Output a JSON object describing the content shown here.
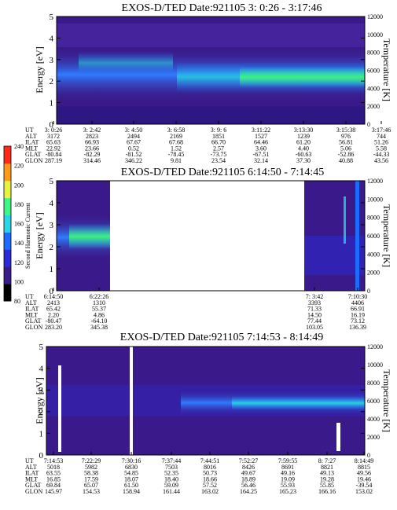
{
  "chart_data": [
    {
      "type": "heatmap",
      "title": "EXOS-D/TED    Date:921105   3: 0:26 - 3:17:46",
      "ylabel": "Energy [eV]",
      "y2label": "Temperature [K]",
      "ylim": [
        0,
        5
      ],
      "y_ticks": [
        "0",
        "1",
        "2",
        "3",
        "4",
        "5"
      ],
      "y2lim": [
        0,
        12000
      ],
      "y2_ticks": [
        "0",
        "2000",
        "4000",
        "6000",
        "8000",
        "10000",
        "12000"
      ],
      "ephemeris": {
        "row_labels": [
          "UT",
          "ALT",
          "ILAT",
          "MLT",
          "GLAT",
          "GLON"
        ],
        "columns": [
          [
            "3: 0:26",
            "3172",
            "65.63",
            "22.92",
            "-80.84",
            "287.19"
          ],
          [
            "3: 2:42",
            "2823",
            "66.93",
            "23.66",
            "-82.29",
            "314.46"
          ],
          [
            "3: 4:50",
            "2494",
            "67.67",
            "0.52",
            "-81.52",
            "346.22"
          ],
          [
            "3: 6:58",
            "2169",
            "67.68",
            "1.52",
            "-78.45",
            "9.81"
          ],
          [
            "3: 9: 6",
            "1851",
            "66.70",
            "2.57",
            "-73.75",
            "23.54"
          ],
          [
            "3:11:22",
            "1527",
            "64.46",
            "3.60",
            "-67.51",
            "32.14"
          ],
          [
            "3:13:30",
            "1239",
            "61.20",
            "4.40",
            "-60.63",
            "37.30"
          ],
          [
            "3:15:38",
            "976",
            "56.81",
            "5.06",
            "-52.86",
            "40.88"
          ],
          [
            "3:17:46",
            "744",
            "51.26",
            "5.58",
            "-44.33",
            "43.56"
          ]
        ]
      }
    },
    {
      "type": "heatmap",
      "title": "EXOS-D/TED    Date:921105   6:14:50 - 7:14:45",
      "ylabel": "Energy [eV]",
      "y2label": "Temperature [K]",
      "ylim": [
        0,
        5
      ],
      "y_ticks": [
        "0",
        "1",
        "2",
        "3",
        "4",
        "5"
      ],
      "y2lim": [
        0,
        12000
      ],
      "y2_ticks": [
        "0",
        "2000",
        "4000",
        "6000",
        "8000",
        "10000",
        "12000"
      ],
      "colorbar": {
        "label": "Second Harmonic Current",
        "ticks": [
          "80",
          "100",
          "120",
          "140",
          "160",
          "180",
          "200",
          "220",
          "240"
        ]
      },
      "ephemeris": {
        "row_labels": [
          "UT",
          "ALT",
          "ILAT",
          "MLT",
          "GLAT",
          "GLON"
        ],
        "columns": [
          [
            "6:14:50",
            "2413",
            "65.42",
            "2.20",
            "-80.47",
            "283.20"
          ],
          [
            "6:22:26",
            "1310",
            "55.37",
            "4.86",
            "-64.10",
            "345.38"
          ],
          [
            "7: 3:42",
            "3393",
            "71.33",
            "14.50",
            "77.44",
            "103.05"
          ],
          [
            "7:10:30",
            "4406",
            "66.91",
            "16.19",
            "73.12",
            "136.39"
          ]
        ]
      }
    },
    {
      "type": "heatmap",
      "title": "EXOS-D/TED    Date:921105   7:14:53 - 8:14:49",
      "ylabel": "Energy [eV]",
      "y2label": "Temperature [K]",
      "ylim": [
        0,
        5
      ],
      "y_ticks": [
        "0",
        "1",
        "2",
        "3",
        "4",
        "5"
      ],
      "y2lim": [
        0,
        12000
      ],
      "y2_ticks": [
        "0",
        "2000",
        "4000",
        "6000",
        "8000",
        "10000",
        "12000"
      ],
      "ephemeris": {
        "row_labels": [
          "UT",
          "ALT",
          "ILAT",
          "MLT",
          "GLAT",
          "GLON"
        ],
        "columns": [
          [
            "7:14:53",
            "5018",
            "63.55",
            "16.85",
            "69.84",
            "145.97"
          ],
          [
            "7:22:29",
            "5982",
            "58.38",
            "17.59",
            "65.07",
            "154.53"
          ],
          [
            "7:30:16",
            "6830",
            "54.85",
            "18.07",
            "61.50",
            "158.94"
          ],
          [
            "7:37:44",
            "7503",
            "52.35",
            "18.40",
            "59.09",
            "161.44"
          ],
          [
            "7:44:51",
            "8016",
            "50.73",
            "18.66",
            "57.52",
            "163.02"
          ],
          [
            "7:52:27",
            "8426",
            "49.67",
            "18.89",
            "56.46",
            "164.25"
          ],
          [
            "7:59:55",
            "8691",
            "49.16",
            "19.09",
            "55.93",
            "165.23"
          ],
          [
            "8: 7:27",
            "8821",
            "49.13",
            "19.28",
            "55.85",
            "166.16"
          ],
          [
            "8:14:49",
            "8815",
            "49.56",
            "19.46",
            "-39.54",
            "153.02"
          ]
        ]
      }
    }
  ],
  "colors": {
    "background": "#3a1a8a",
    "low": "#4b2aa8",
    "mid": "#1f4fe0",
    "band": "#2f7cff",
    "high": "#29d2d8",
    "peak": "#3ef07a"
  },
  "colorbar_colors": [
    "#000000",
    "#3a1a8a",
    "#2a2ad8",
    "#1e6cff",
    "#2ad6e6",
    "#3ff58a",
    "#e8f040",
    "#ff9a1a",
    "#ff2a1a"
  ]
}
